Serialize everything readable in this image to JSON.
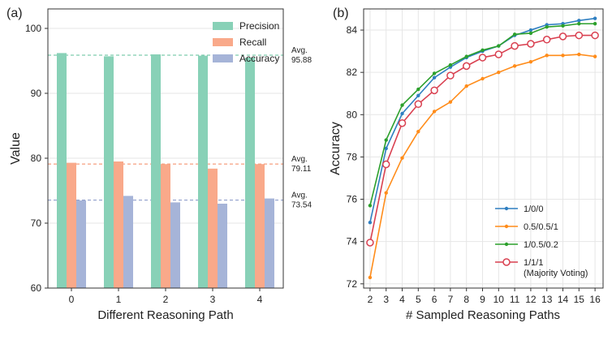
{
  "chart_data": [
    {
      "panel_label": "(a)",
      "type": "bar",
      "xlabel": "Different Reasoning Path",
      "ylabel": "Value",
      "categories": [
        "0",
        "1",
        "2",
        "3",
        "4"
      ],
      "ylim": [
        60,
        103
      ],
      "yticks": [
        60,
        70,
        80,
        90,
        100
      ],
      "legend_position": "top-right",
      "series": [
        {
          "name": "Precision",
          "color": "#88d1b7",
          "values": [
            96.2,
            95.7,
            96.0,
            95.8,
            95.5
          ]
        },
        {
          "name": "Recall",
          "color": "#f9a98a",
          "values": [
            79.3,
            79.5,
            79.1,
            78.4,
            79.1
          ]
        },
        {
          "name": "Accuracy",
          "color": "#a6b4d8",
          "values": [
            73.5,
            74.2,
            73.2,
            73.0,
            73.8
          ]
        }
      ],
      "averages": [
        {
          "label": "Avg.",
          "value_text": "95.88",
          "value": 95.88,
          "color": "#5fbf9a"
        },
        {
          "label": "Avg.",
          "value_text": "79.11",
          "value": 79.11,
          "color": "#f4885f"
        },
        {
          "label": "Avg.",
          "value_text": "73.54",
          "value": 73.54,
          "color": "#8293c6"
        }
      ]
    },
    {
      "panel_label": "(b)",
      "type": "line",
      "xlabel": "# Sampled Reasoning Paths",
      "ylabel": "Accuracy",
      "x": [
        2,
        3,
        4,
        5,
        6,
        7,
        8,
        9,
        10,
        11,
        12,
        13,
        14,
        15,
        16
      ],
      "xlim": [
        1.6,
        16.5
      ],
      "ylim": [
        71.8,
        85.0
      ],
      "yticks": [
        72,
        74,
        76,
        78,
        80,
        82,
        84
      ],
      "legend_position": "bottom-right",
      "series": [
        {
          "name": "1/0/0",
          "color": "#2f7fc1",
          "marker": "dot",
          "values": [
            74.9,
            78.4,
            80.05,
            80.9,
            81.75,
            82.25,
            82.7,
            83.0,
            83.25,
            83.75,
            84.0,
            84.25,
            84.3,
            84.45,
            84.55
          ]
        },
        {
          "name": "0.5/0.5/1",
          "color": "#ff8c1a",
          "marker": "dot",
          "values": [
            72.3,
            76.3,
            77.95,
            79.2,
            80.15,
            80.6,
            81.35,
            81.7,
            82.0,
            82.3,
            82.5,
            82.8,
            82.8,
            82.85,
            82.75
          ]
        },
        {
          "name": "1/0.5/0.2",
          "color": "#2ca02c",
          "marker": "dot",
          "values": [
            75.7,
            78.8,
            80.45,
            81.2,
            81.95,
            82.35,
            82.75,
            83.05,
            83.25,
            83.8,
            83.85,
            84.15,
            84.2,
            84.3,
            84.3
          ]
        },
        {
          "name": "1/1/1",
          "name_line2": "(Majority Voting)",
          "color": "#d94050",
          "marker": "hollow",
          "values": [
            73.95,
            77.65,
            79.6,
            80.5,
            81.15,
            81.85,
            82.3,
            82.7,
            82.85,
            83.25,
            83.35,
            83.55,
            83.7,
            83.75,
            83.75
          ]
        }
      ]
    }
  ]
}
